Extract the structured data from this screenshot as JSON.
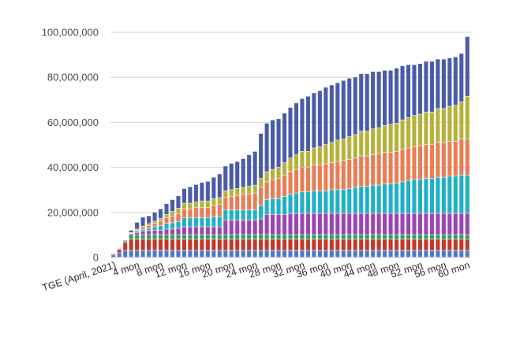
{
  "chart_data": {
    "type": "bar",
    "stacked": true,
    "title": "",
    "xlabel": "",
    "ylabel": "",
    "ylim": [
      0,
      100000000
    ],
    "y_ticks": [
      0,
      20000000,
      40000000,
      60000000,
      80000000,
      100000000
    ],
    "y_tick_labels": [
      "0",
      "20,000,000",
      "40,000,000",
      "60,000,000",
      "80,000,000",
      "100,000,000"
    ],
    "grid": true,
    "legend": "none",
    "x_tick_labels": [
      {
        "index": 0,
        "label": "TGE (April, 2021)"
      },
      {
        "index": 4,
        "label": "4 mon"
      },
      {
        "index": 8,
        "label": "8 mon"
      },
      {
        "index": 12,
        "label": "12 mon"
      },
      {
        "index": 16,
        "label": "16 mon"
      },
      {
        "index": 20,
        "label": "20 mon"
      },
      {
        "index": 24,
        "label": "24 mon"
      },
      {
        "index": 28,
        "label": "28 mon"
      },
      {
        "index": 32,
        "label": "32 mon"
      },
      {
        "index": 36,
        "label": "36 mon"
      },
      {
        "index": 40,
        "label": "40 mon"
      },
      {
        "index": 44,
        "label": "44 mon"
      },
      {
        "index": 48,
        "label": "48 mon"
      },
      {
        "index": 52,
        "label": "52 mon"
      },
      {
        "index": 56,
        "label": "56 mon"
      },
      {
        "index": 60,
        "label": "60 mon"
      }
    ],
    "categories": [
      "0",
      "1",
      "2",
      "3",
      "4",
      "5",
      "6",
      "7",
      "8",
      "9",
      "10",
      "11",
      "12",
      "13",
      "14",
      "15",
      "16",
      "17",
      "18",
      "19",
      "20",
      "21",
      "22",
      "23",
      "24",
      "25",
      "26",
      "27",
      "28",
      "29",
      "30",
      "31",
      "32",
      "33",
      "34",
      "35",
      "36",
      "37",
      "38",
      "39",
      "40",
      "41",
      "42",
      "43",
      "44",
      "45",
      "46",
      "47",
      "48",
      "49",
      "50",
      "51",
      "52",
      "53",
      "54",
      "55",
      "56",
      "57",
      "58",
      "59",
      "60"
    ],
    "series": [
      {
        "color": "#4e79c4",
        "values": [
          1000000,
          2000000,
          3000000,
          3000000,
          3000000,
          3000000,
          3000000,
          3000000,
          3000000,
          3000000,
          3000000,
          3000000,
          3000000,
          3000000,
          3000000,
          3000000,
          3000000,
          3000000,
          3000000,
          3000000,
          3000000,
          3000000,
          3000000,
          3000000,
          3000000,
          3000000,
          3000000,
          3000000,
          3000000,
          3000000,
          3000000,
          3000000,
          3000000,
          3000000,
          3000000,
          3000000,
          3000000,
          3000000,
          3000000,
          3000000,
          3000000,
          3000000,
          3000000,
          3000000,
          3000000,
          3000000,
          3000000,
          3000000,
          3000000,
          3000000,
          3000000,
          3000000,
          3000000,
          3000000,
          3000000,
          3000000,
          3000000,
          3000000,
          3000000,
          3000000,
          3000000
        ]
      },
      {
        "color": "#c0392b",
        "values": [
          500000,
          1500000,
          3500000,
          5000000,
          5000000,
          5000000,
          5000000,
          5000000,
          5000000,
          5000000,
          5000000,
          5000000,
          5000000,
          5000000,
          5000000,
          5000000,
          5000000,
          5000000,
          5000000,
          5000000,
          5000000,
          5000000,
          5000000,
          5000000,
          5000000,
          5000000,
          5000000,
          5000000,
          5000000,
          5000000,
          5000000,
          5000000,
          5000000,
          5000000,
          5000000,
          5000000,
          5000000,
          5000000,
          5000000,
          5000000,
          5000000,
          5000000,
          5000000,
          5000000,
          5000000,
          5000000,
          5000000,
          5000000,
          5000000,
          5000000,
          5000000,
          5000000,
          5000000,
          5000000,
          5000000,
          5000000,
          5000000,
          5000000,
          5000000,
          5000000,
          5000000
        ]
      },
      {
        "color": "#2a9d5c",
        "values": [
          0,
          200000,
          500000,
          2000000,
          2000000,
          2000000,
          2000000,
          2000000,
          2000000,
          2000000,
          2000000,
          2000000,
          2000000,
          2000000,
          2000000,
          2000000,
          2000000,
          2000000,
          2000000,
          2000000,
          2000000,
          2000000,
          2000000,
          2000000,
          2000000,
          2000000,
          2000000,
          2000000,
          2000000,
          2000000,
          2000000,
          2000000,
          2000000,
          2000000,
          2000000,
          2000000,
          2000000,
          2000000,
          2000000,
          2000000,
          2000000,
          2000000,
          2000000,
          2000000,
          2000000,
          2000000,
          2000000,
          2000000,
          2000000,
          2000000,
          2000000,
          2000000,
          2000000,
          2000000,
          2000000,
          2000000,
          2000000,
          2000000,
          2000000,
          2000000,
          2000000
        ]
      },
      {
        "color": "#9b45b3",
        "values": [
          0,
          0,
          0,
          500000,
          1000000,
          1500000,
          1800000,
          2000000,
          2000000,
          2500000,
          2500000,
          2800000,
          3500000,
          3500000,
          3500000,
          3500000,
          3500000,
          3500000,
          3500000,
          6500000,
          6500000,
          6500000,
          6500000,
          6500000,
          6500000,
          7000000,
          9000000,
          9000000,
          9000000,
          9000000,
          9500000,
          9500000,
          9500000,
          9500000,
          9500000,
          9500000,
          9500000,
          9500000,
          9500000,
          9500000,
          9500000,
          9500000,
          9500000,
          9500000,
          9500000,
          9500000,
          9500000,
          9500000,
          9500000,
          9500000,
          9500000,
          9500000,
          9500000,
          9500000,
          9500000,
          9500000,
          9500000,
          9500000,
          9500000,
          9500000,
          9500000
        ]
      },
      {
        "color": "#1fb0c4",
        "values": [
          0,
          0,
          0,
          200000,
          500000,
          800000,
          1000000,
          1500000,
          2000000,
          2500000,
          2800000,
          3000000,
          4000000,
          4000000,
          4000000,
          4000000,
          4000000,
          4500000,
          4500000,
          4500000,
          4500000,
          4500000,
          4500000,
          4500000,
          4500000,
          6000000,
          6500000,
          7000000,
          7000000,
          8000000,
          8500000,
          9000000,
          9500000,
          9500000,
          10000000,
          10000000,
          10000000,
          10500000,
          10500000,
          10500000,
          11000000,
          11500000,
          12000000,
          12000000,
          12500000,
          12500000,
          13000000,
          13000000,
          13500000,
          14000000,
          14500000,
          15000000,
          15000000,
          15500000,
          15500000,
          16000000,
          16000000,
          16500000,
          16500000,
          17000000,
          17000000
        ]
      },
      {
        "color": "#e97d55",
        "values": [
          0,
          0,
          0,
          300000,
          500000,
          1000000,
          1300000,
          1500000,
          2000000,
          2500000,
          3000000,
          3500000,
          4000000,
          4000000,
          4500000,
          4500000,
          4500000,
          5000000,
          5500000,
          5500000,
          6000000,
          6500000,
          7000000,
          7000000,
          7500000,
          8000000,
          8000000,
          8500000,
          9000000,
          9500000,
          10000000,
          10500000,
          11000000,
          11000000,
          11500000,
          11500000,
          12000000,
          12000000,
          12500000,
          13000000,
          13000000,
          13000000,
          13500000,
          13500000,
          13500000,
          14000000,
          14000000,
          14000000,
          14000000,
          14500000,
          14500000,
          14500000,
          15000000,
          15000000,
          15000000,
          15500000,
          15500000,
          15500000,
          15500000,
          16000000,
          16000000
        ]
      },
      {
        "color": "#b5b23b",
        "values": [
          0,
          0,
          0,
          0,
          500000,
          500000,
          800000,
          1000000,
          1200000,
          1500000,
          2000000,
          2500000,
          2500000,
          2500000,
          2500000,
          3000000,
          3000000,
          3000000,
          3000000,
          3000000,
          3000000,
          3000000,
          3000000,
          3500000,
          3500000,
          4000000,
          4500000,
          4500000,
          5000000,
          5500000,
          6000000,
          6500000,
          7000000,
          7000000,
          7500000,
          8000000,
          8500000,
          9000000,
          9500000,
          9500000,
          10000000,
          10500000,
          11000000,
          11000000,
          11500000,
          11500000,
          12000000,
          12500000,
          12500000,
          13000000,
          13500000,
          14000000,
          14000000,
          14500000,
          14500000,
          15000000,
          15000000,
          15500000,
          16000000,
          16500000,
          19000000
        ]
      },
      {
        "color": "#4a5ca8",
        "values": [
          0,
          300000,
          500000,
          1000000,
          3000000,
          4000000,
          3500000,
          4000000,
          4300000,
          4800000,
          5300000,
          5500000,
          6500000,
          7300000,
          7800000,
          8200000,
          8700000,
          9500000,
          10500000,
          11000000,
          11700000,
          12000000,
          12800000,
          14000000,
          15000000,
          20000000,
          21500000,
          22000000,
          21500000,
          22000000,
          22500000,
          23000000,
          23500000,
          24500000,
          24500000,
          25000000,
          25500000,
          25500000,
          25500000,
          26000000,
          26000000,
          25500000,
          25500000,
          25500000,
          25500000,
          25000000,
          24500000,
          24000000,
          24500000,
          24000000,
          23500000,
          22500000,
          22500000,
          22500000,
          22500000,
          22000000,
          22000000,
          21500000,
          21500000,
          21500000,
          26500000
        ]
      }
    ]
  }
}
